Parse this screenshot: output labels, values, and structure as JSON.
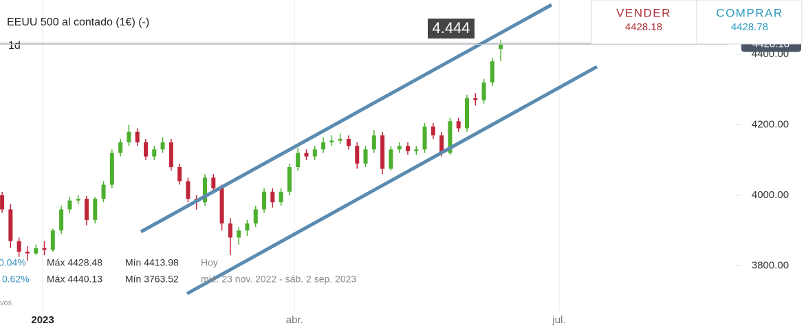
{
  "header": {
    "title": "EEUU 500 al contado (1€) (-)",
    "interval": "1d"
  },
  "quote": {
    "sell_label": "VENDER",
    "sell_price": "4428.18",
    "buy_label": "COMPRAR",
    "buy_price": "4428.78"
  },
  "stats": [
    {
      "change": "0.04%",
      "max": "Máx 4428.48",
      "min": "Mín 4413.98",
      "period": "Hoy"
    },
    {
      "change": "0.62%",
      "max": "Máx 4440.13",
      "min": "Mín 3763.52",
      "period": "mié. 23 nov. 2022 - sáb. 2 sep. 2023"
    }
  ],
  "footer_note": "vos",
  "chart_data": {
    "type": "candlestick",
    "annotation": "4.444",
    "last_price": 4428.18,
    "up_color": "#4caf2e",
    "down_color": "#c0263a",
    "categories": [
      null,
      null,
      null,
      null,
      null,
      null,
      null,
      null,
      null,
      null,
      null,
      null,
      null,
      null,
      null,
      null,
      null,
      null,
      null,
      null,
      null,
      null,
      null,
      null,
      null,
      null,
      null,
      null,
      null,
      null,
      null,
      null,
      null,
      null,
      null,
      null,
      null,
      null,
      null,
      null,
      null,
      null,
      null,
      null,
      null,
      null,
      null,
      null,
      null,
      null,
      null,
      null,
      null,
      null,
      null,
      null,
      null,
      null,
      null,
      null
    ],
    "open": [
      4000,
      3960,
      3870,
      3840,
      3835,
      3850,
      3845,
      3900,
      3960,
      3985,
      3990,
      3930,
      3990,
      4030,
      4120,
      4150,
      4180,
      4150,
      4110,
      4130,
      4150,
      4080,
      4040,
      3990,
      3980,
      4050,
      4020,
      3920,
      3880,
      3900,
      3920,
      3960,
      4010,
      3980,
      4010,
      4080,
      4120,
      4110,
      4130,
      4150,
      4155,
      4160,
      4140,
      4090,
      4130,
      4170,
      4075,
      4130,
      4140,
      4125,
      4130,
      4195,
      4170,
      4120,
      4210,
      4190,
      4275,
      4270,
      4320,
      4415
    ],
    "high": [
      4010,
      3975,
      3880,
      3855,
      3860,
      3870,
      3905,
      3970,
      3995,
      4000,
      3998,
      3995,
      4040,
      4130,
      4160,
      4200,
      4190,
      4160,
      4140,
      4165,
      4160,
      4090,
      4050,
      4000,
      4060,
      4060,
      4030,
      3935,
      3910,
      3930,
      3970,
      4020,
      4020,
      4020,
      4090,
      4135,
      4130,
      4140,
      4165,
      4170,
      4175,
      4170,
      4150,
      4140,
      4185,
      4180,
      4140,
      4150,
      4150,
      4140,
      4205,
      4205,
      4180,
      4220,
      4220,
      4285,
      4290,
      4330,
      4390,
      4440
    ],
    "low": [
      3950,
      3850,
      3825,
      3815,
      3830,
      3830,
      3840,
      3890,
      3950,
      3975,
      3915,
      3920,
      3980,
      4020,
      4110,
      4140,
      4140,
      4100,
      4100,
      4120,
      4070,
      4030,
      3980,
      3960,
      3970,
      4010,
      3900,
      3830,
      3860,
      3885,
      3910,
      3950,
      3965,
      3970,
      4000,
      4070,
      4100,
      4100,
      4120,
      4140,
      4145,
      4130,
      4075,
      4080,
      4120,
      4060,
      4070,
      4120,
      4115,
      4115,
      4120,
      4160,
      4110,
      4115,
      4180,
      4180,
      4255,
      4260,
      4310,
      4380
    ],
    "close": [
      3960,
      3870,
      3840,
      3835,
      3850,
      3845,
      3900,
      3960,
      3985,
      3990,
      3930,
      3990,
      4030,
      4120,
      4150,
      4180,
      4150,
      4110,
      4130,
      4150,
      4080,
      4040,
      3990,
      3980,
      4050,
      4020,
      3920,
      3880,
      3900,
      3920,
      3960,
      4010,
      3980,
      4010,
      4080,
      4120,
      4110,
      4130,
      4150,
      4155,
      4160,
      4140,
      4090,
      4130,
      4170,
      4075,
      4130,
      4140,
      4125,
      4130,
      4195,
      4170,
      4120,
      4210,
      4190,
      4275,
      4270,
      4320,
      4380,
      4428
    ],
    "xlim": [
      -0.25,
      86
    ],
    "xticks": [
      {
        "value": 4.8,
        "label": "2023"
      },
      {
        "value": 34.6,
        "label": "abr."
      },
      {
        "value": 65.9,
        "label": "jul."
      }
    ],
    "ylim": [
      3680,
      4550
    ],
    "yticks": [
      {
        "value": 3800,
        "label": "3800.00"
      },
      {
        "value": 4000,
        "label": "4000.00"
      },
      {
        "value": 4200,
        "label": "4200.00"
      },
      {
        "value": 4400,
        "label": "4400.00"
      }
    ]
  }
}
